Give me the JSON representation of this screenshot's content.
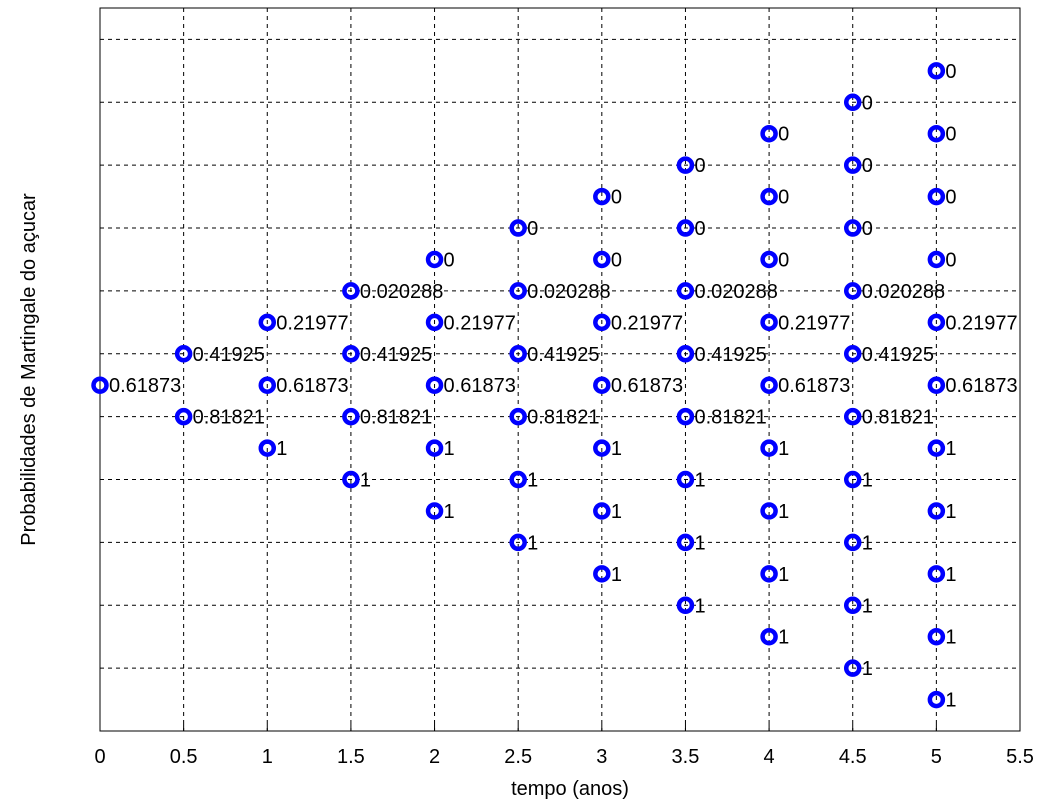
{
  "chart_data": {
    "type": "scatter",
    "xlabel": "tempo (anos)",
    "ylabel": "Probabilidades de Martingale do açucar",
    "xlim": [
      0,
      5.5
    ],
    "xticks": [
      "0",
      "0.5",
      "1",
      "1.5",
      "2",
      "2.5",
      "3",
      "3.5",
      "4",
      "4.5",
      "5",
      "5.5"
    ],
    "grid": true,
    "marker": "circle",
    "marker_color": "#0000ff",
    "points": [
      {
        "t": 0,
        "node": 0,
        "label": "0.61873"
      },
      {
        "t": 0.5,
        "node": 1,
        "label": "0.41925"
      },
      {
        "t": 0.5,
        "node": -1,
        "label": "0.81821"
      },
      {
        "t": 1,
        "node": 2,
        "label": "0.21977"
      },
      {
        "t": 1,
        "node": 0,
        "label": "0.61873"
      },
      {
        "t": 1,
        "node": -2,
        "label": "1"
      },
      {
        "t": 1.5,
        "node": 3,
        "label": "0.020288"
      },
      {
        "t": 1.5,
        "node": 1,
        "label": "0.41925"
      },
      {
        "t": 1.5,
        "node": -1,
        "label": "0.81821"
      },
      {
        "t": 1.5,
        "node": -3,
        "label": "1"
      },
      {
        "t": 2,
        "node": 4,
        "label": "0"
      },
      {
        "t": 2,
        "node": 2,
        "label": "0.21977"
      },
      {
        "t": 2,
        "node": 0,
        "label": "0.61873"
      },
      {
        "t": 2,
        "node": -2,
        "label": "1"
      },
      {
        "t": 2,
        "node": -4,
        "label": "1"
      },
      {
        "t": 2.5,
        "node": 5,
        "label": "0"
      },
      {
        "t": 2.5,
        "node": 3,
        "label": "0.020288"
      },
      {
        "t": 2.5,
        "node": 1,
        "label": "0.41925"
      },
      {
        "t": 2.5,
        "node": -1,
        "label": "0.81821"
      },
      {
        "t": 2.5,
        "node": -3,
        "label": "1"
      },
      {
        "t": 2.5,
        "node": -5,
        "label": "1"
      },
      {
        "t": 3,
        "node": 6,
        "label": "0"
      },
      {
        "t": 3,
        "node": 4,
        "label": "0"
      },
      {
        "t": 3,
        "node": 2,
        "label": "0.21977"
      },
      {
        "t": 3,
        "node": 0,
        "label": "0.61873"
      },
      {
        "t": 3,
        "node": -2,
        "label": "1"
      },
      {
        "t": 3,
        "node": -4,
        "label": "1"
      },
      {
        "t": 3,
        "node": -6,
        "label": "1"
      },
      {
        "t": 3.5,
        "node": 7,
        "label": "0"
      },
      {
        "t": 3.5,
        "node": 5,
        "label": "0"
      },
      {
        "t": 3.5,
        "node": 3,
        "label": "0.020288"
      },
      {
        "t": 3.5,
        "node": 1,
        "label": "0.41925"
      },
      {
        "t": 3.5,
        "node": -1,
        "label": "0.81821"
      },
      {
        "t": 3.5,
        "node": -3,
        "label": "1"
      },
      {
        "t": 3.5,
        "node": -5,
        "label": "1"
      },
      {
        "t": 3.5,
        "node": -7,
        "label": "1"
      },
      {
        "t": 4,
        "node": 8,
        "label": "0"
      },
      {
        "t": 4,
        "node": 6,
        "label": "0"
      },
      {
        "t": 4,
        "node": 4,
        "label": "0"
      },
      {
        "t": 4,
        "node": 2,
        "label": "0.21977"
      },
      {
        "t": 4,
        "node": 0,
        "label": "0.61873"
      },
      {
        "t": 4,
        "node": -2,
        "label": "1"
      },
      {
        "t": 4,
        "node": -4,
        "label": "1"
      },
      {
        "t": 4,
        "node": -6,
        "label": "1"
      },
      {
        "t": 4,
        "node": -8,
        "label": "1"
      },
      {
        "t": 4.5,
        "node": 9,
        "label": "0"
      },
      {
        "t": 4.5,
        "node": 7,
        "label": "0"
      },
      {
        "t": 4.5,
        "node": 5,
        "label": "0"
      },
      {
        "t": 4.5,
        "node": 3,
        "label": "0.020288"
      },
      {
        "t": 4.5,
        "node": 1,
        "label": "0.41925"
      },
      {
        "t": 4.5,
        "node": -1,
        "label": "0.81821"
      },
      {
        "t": 4.5,
        "node": -3,
        "label": "1"
      },
      {
        "t": 4.5,
        "node": -5,
        "label": "1"
      },
      {
        "t": 4.5,
        "node": -7,
        "label": "1"
      },
      {
        "t": 4.5,
        "node": -9,
        "label": "1"
      },
      {
        "t": 5,
        "node": 10,
        "label": "0"
      },
      {
        "t": 5,
        "node": 8,
        "label": "0"
      },
      {
        "t": 5,
        "node": 6,
        "label": "0"
      },
      {
        "t": 5,
        "node": 4,
        "label": "0"
      },
      {
        "t": 5,
        "node": 2,
        "label": "0.21977"
      },
      {
        "t": 5,
        "node": 0,
        "label": "0.61873"
      },
      {
        "t": 5,
        "node": -2,
        "label": "1"
      },
      {
        "t": 5,
        "node": -4,
        "label": "1"
      },
      {
        "t": 5,
        "node": -6,
        "label": "1"
      },
      {
        "t": 5,
        "node": -8,
        "label": "1"
      },
      {
        "t": 5,
        "node": -10,
        "label": "1"
      }
    ]
  }
}
